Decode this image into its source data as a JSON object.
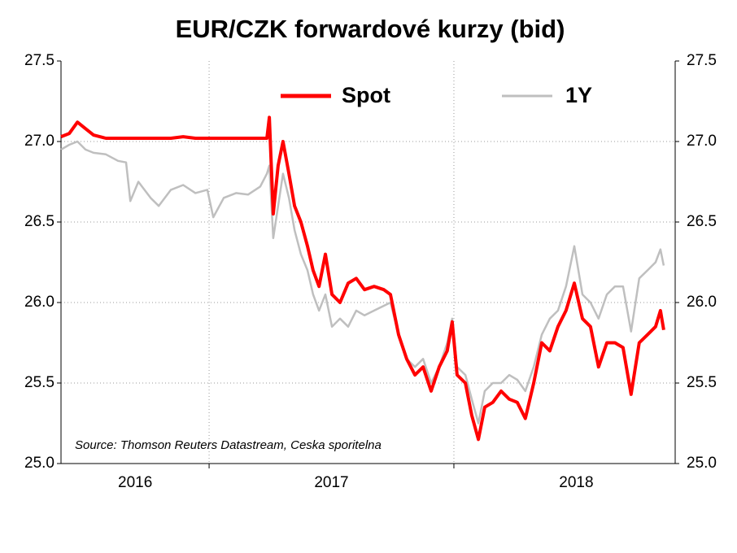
{
  "chart_data": {
    "type": "line",
    "title": "EUR/CZK forwardové kurzy (bid)",
    "annotation": "Source: Thomson Reuters Datastream, Ceska sporitelna",
    "x": [
      2016.395,
      2016.429,
      2016.462,
      2016.495,
      2016.528,
      2016.578,
      2016.628,
      2016.661,
      2016.678,
      2016.711,
      2016.761,
      2016.794,
      2016.844,
      2016.894,
      2016.944,
      2016.993,
      2017.017,
      2017.06,
      2017.11,
      2017.159,
      2017.209,
      2017.236,
      2017.246,
      2017.262,
      2017.282,
      2017.302,
      2017.326,
      2017.349,
      2017.375,
      2017.402,
      2017.425,
      2017.449,
      2017.475,
      2017.502,
      2017.535,
      2017.568,
      2017.601,
      2017.635,
      2017.674,
      2017.714,
      2017.741,
      2017.774,
      2017.807,
      2017.841,
      2017.874,
      2017.907,
      2017.94,
      2017.973,
      2017.993,
      2018.013,
      2018.047,
      2018.073,
      2018.1,
      2018.126,
      2018.159,
      2018.193,
      2018.226,
      2018.259,
      2018.292,
      2018.326,
      2018.359,
      2018.392,
      2018.425,
      2018.458,
      2018.492,
      2018.525,
      2018.558,
      2018.591,
      2018.625,
      2018.658,
      2018.691,
      2018.724,
      2018.757,
      2018.791,
      2018.824,
      2018.844,
      2018.857
    ],
    "series": [
      {
        "name": "1Y",
        "color": "#bfbfbf",
        "values": [
          26.95,
          26.98,
          27.0,
          26.95,
          26.93,
          26.92,
          26.88,
          26.87,
          26.63,
          26.75,
          26.65,
          26.6,
          26.7,
          26.73,
          26.68,
          26.7,
          26.53,
          26.65,
          26.68,
          26.67,
          26.72,
          26.8,
          26.85,
          26.4,
          26.6,
          26.8,
          26.65,
          26.45,
          26.3,
          26.2,
          26.05,
          25.95,
          26.05,
          25.85,
          25.9,
          25.85,
          25.95,
          25.92,
          25.95,
          25.98,
          26.0,
          25.8,
          25.65,
          25.6,
          25.65,
          25.5,
          25.6,
          25.75,
          25.9,
          25.6,
          25.55,
          25.4,
          25.25,
          25.45,
          25.5,
          25.5,
          25.55,
          25.52,
          25.45,
          25.6,
          25.8,
          25.9,
          25.95,
          26.1,
          26.35,
          26.05,
          26.0,
          25.9,
          26.05,
          26.1,
          26.1,
          25.82,
          26.15,
          26.2,
          26.25,
          26.33,
          26.23
        ]
      },
      {
        "name": "Spot",
        "color": "#ff0000",
        "values": [
          27.03,
          27.05,
          27.12,
          27.08,
          27.04,
          27.02,
          27.02,
          27.02,
          27.02,
          27.02,
          27.02,
          27.02,
          27.02,
          27.03,
          27.02,
          27.02,
          27.02,
          27.02,
          27.02,
          27.02,
          27.02,
          27.02,
          27.15,
          26.55,
          26.85,
          27.0,
          26.8,
          26.6,
          26.5,
          26.35,
          26.2,
          26.1,
          26.3,
          26.05,
          26.0,
          26.12,
          26.15,
          26.08,
          26.1,
          26.08,
          26.05,
          25.8,
          25.65,
          25.55,
          25.6,
          25.45,
          25.6,
          25.7,
          25.88,
          25.55,
          25.5,
          25.3,
          25.15,
          25.35,
          25.38,
          25.45,
          25.4,
          25.38,
          25.28,
          25.5,
          25.75,
          25.7,
          25.85,
          25.95,
          26.12,
          25.9,
          25.85,
          25.6,
          25.75,
          25.75,
          25.72,
          25.43,
          25.75,
          25.8,
          25.85,
          25.95,
          25.83
        ]
      }
    ],
    "xlim": [
      2016.395,
      2018.904
    ],
    "xticks": [
      {
        "value": 2016.698,
        "label": "2016"
      },
      {
        "value": 2017.5,
        "label": "2017"
      },
      {
        "value": 2018.5,
        "label": "2018"
      }
    ],
    "xgrid": [
      2017,
      2018
    ],
    "ylim": [
      25.0,
      27.5
    ],
    "yticks": [
      {
        "value": 25.0,
        "label": "25.0"
      },
      25.5,
      {
        "value": 26.0,
        "label": "26.0"
      },
      26.5,
      {
        "value": 27.0,
        "label": "27.0"
      },
      27.5
    ],
    "y2lim": [
      25.0,
      27.5
    ],
    "y2ticks": [
      {
        "value": 25.0,
        "label": "25.0"
      },
      25.5,
      {
        "value": 26.0,
        "label": "26.0"
      },
      26.5,
      {
        "value": 27.0,
        "label": "27.0"
      },
      27.5
    ],
    "grid": true
  }
}
